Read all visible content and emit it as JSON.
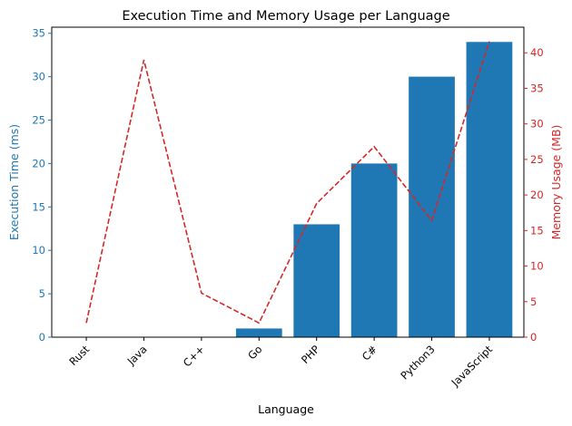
{
  "chart_data": {
    "type": "bar",
    "title": "Execution Time and Memory Usage per Language",
    "xlabel": "Language",
    "categories": [
      "Rust",
      "Java",
      "C++",
      "Go",
      "PHP",
      "C#",
      "Python3",
      "JavaScript"
    ],
    "series": [
      {
        "type": "bar",
        "axis": "left",
        "values": [
          0,
          0,
          0,
          1,
          13,
          20,
          30,
          34
        ]
      },
      {
        "type": "line",
        "axis": "right",
        "line_style": "dashed",
        "values": [
          2.0,
          39.0,
          6.2,
          2.0,
          18.8,
          26.8,
          16.4,
          41.6
        ]
      }
    ],
    "ylabel": "Execution Time (ms)",
    "ylim": [
      0,
      35.7
    ],
    "yticks": [
      0,
      5,
      10,
      15,
      20,
      25,
      30,
      35
    ],
    "y2label": "Memory Usage (MB)",
    "y2lim": [
      0,
      43.6
    ],
    "y2ticks": [
      0,
      5,
      10,
      15,
      20,
      25,
      30,
      35,
      40
    ],
    "grid": false,
    "legend": "none"
  },
  "colors": {
    "bar": "#1f77b4",
    "line": "#d62728",
    "left_axis": "#1f77b4",
    "right_axis": "#d62728",
    "axis": "#000000",
    "text": "#000000"
  }
}
